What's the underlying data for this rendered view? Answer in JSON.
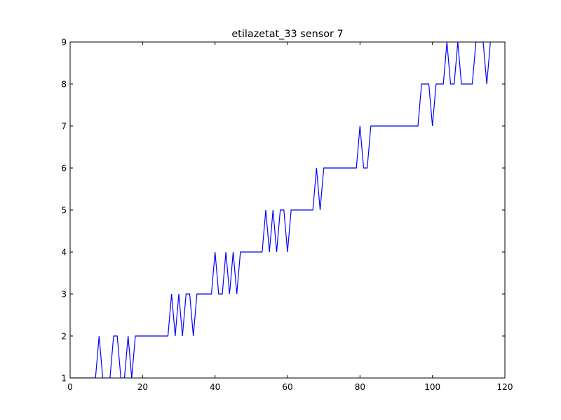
{
  "chart_data": {
    "type": "line",
    "title": "etilazetat_33 sensor 7",
    "xlabel": "",
    "ylabel": "",
    "xlim": [
      0,
      120
    ],
    "ylim": [
      1,
      9
    ],
    "xticks": [
      0,
      20,
      40,
      60,
      80,
      100,
      120
    ],
    "yticks": [
      1,
      2,
      3,
      4,
      5,
      6,
      7,
      8,
      9
    ],
    "grid": false,
    "legend": false,
    "series_color": "#0000ff",
    "series": [
      {
        "x": [
          0,
          7,
          8,
          9,
          11,
          12,
          13,
          14,
          15,
          16,
          17,
          18,
          27,
          28,
          29,
          30,
          31,
          32,
          33,
          34,
          35,
          39,
          40,
          41,
          42,
          43,
          44,
          45,
          46,
          47,
          53,
          54,
          55,
          56,
          57,
          58,
          59,
          60,
          61,
          67,
          68,
          69,
          70,
          79,
          80,
          81,
          82,
          83,
          96,
          97,
          99,
          100,
          101,
          103,
          104,
          105,
          106,
          107,
          108,
          111,
          112,
          113,
          114,
          115,
          116
        ],
        "y": [
          1,
          1,
          2,
          1,
          1,
          2,
          2,
          1,
          1,
          2,
          1,
          2,
          2,
          3,
          2,
          3,
          2,
          3,
          3,
          2,
          3,
          3,
          4,
          3,
          3,
          4,
          3,
          4,
          3,
          4,
          4,
          5,
          4,
          5,
          4,
          5,
          5,
          4,
          5,
          5,
          6,
          5,
          6,
          6,
          7,
          6,
          6,
          7,
          7,
          8,
          8,
          7,
          8,
          8,
          9,
          8,
          8,
          9,
          8,
          8,
          9,
          9,
          9,
          8,
          9
        ]
      }
    ]
  }
}
